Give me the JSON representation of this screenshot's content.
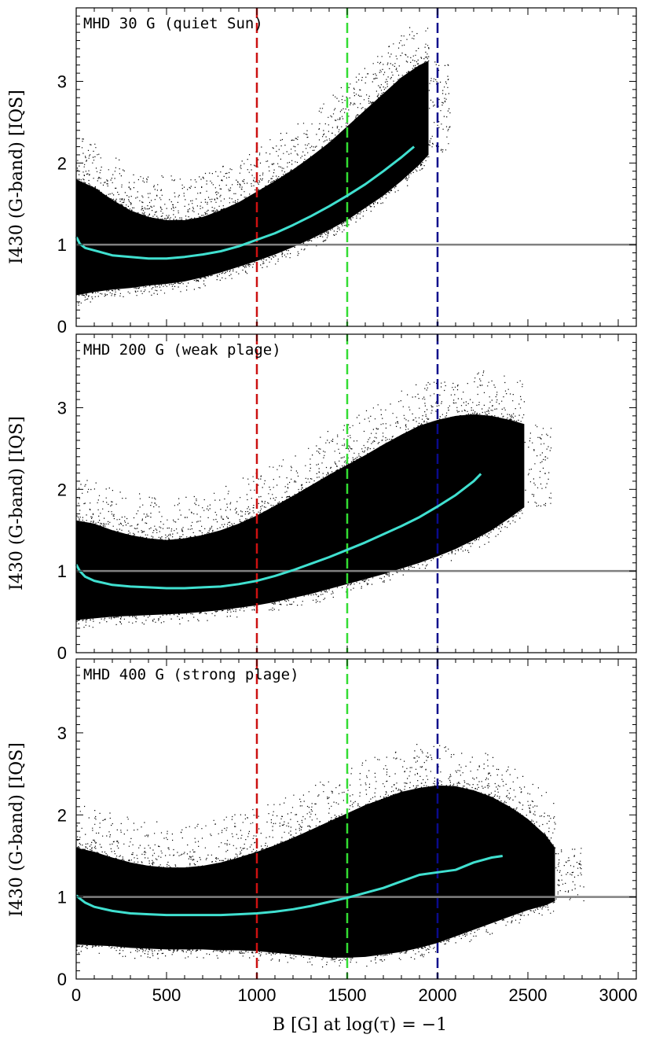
{
  "chart_data": {
    "type": "scatter",
    "xlabel": "B [G] at log(τ) = −1",
    "ylabel": "I430 (G-band) [IQS]",
    "xlim": [
      0,
      3100
    ],
    "ylim": [
      0,
      3.9
    ],
    "xticks": [
      0,
      500,
      1000,
      1500,
      2000,
      2500,
      3000
    ],
    "xtick_labels": [
      "0",
      "500",
      "1000",
      "1500",
      "2000",
      "2500",
      "3000"
    ],
    "yticks": [
      0,
      1,
      2,
      3
    ],
    "ytick_labels": [
      "0",
      "1",
      "2",
      "3"
    ],
    "reference_line": {
      "y": 1.0,
      "color": "#808080"
    },
    "vertical_lines": [
      {
        "x": 1000,
        "color": "#cc1111"
      },
      {
        "x": 1500,
        "color": "#33dd33"
      },
      {
        "x": 2000,
        "color": "#0a0a8c"
      }
    ],
    "panels": [
      {
        "title": "MHD 30 G (quiet Sun)",
        "scatter_color": "#000000",
        "mean_curve_color": "#40e0d0",
        "mean_curve": {
          "x": [
            0,
            20,
            50,
            100,
            200,
            300,
            400,
            500,
            600,
            700,
            800,
            900,
            1000,
            1100,
            1200,
            1300,
            1400,
            1500,
            1600,
            1700,
            1800,
            1870
          ],
          "y": [
            1.1,
            1.01,
            0.96,
            0.93,
            0.87,
            0.85,
            0.83,
            0.83,
            0.85,
            0.88,
            0.92,
            0.98,
            1.06,
            1.14,
            1.24,
            1.35,
            1.47,
            1.6,
            1.74,
            1.9,
            2.07,
            2.2
          ]
        },
        "cloud_upper": {
          "x": [
            0,
            100,
            200,
            300,
            400,
            500,
            600,
            700,
            800,
            900,
            1000,
            1100,
            1200,
            1300,
            1400,
            1500,
            1600,
            1700,
            1800,
            1900,
            1950
          ],
          "y": [
            1.8,
            1.7,
            1.55,
            1.42,
            1.34,
            1.3,
            1.3,
            1.34,
            1.42,
            1.52,
            1.65,
            1.78,
            1.92,
            2.08,
            2.25,
            2.45,
            2.65,
            2.85,
            3.05,
            3.2,
            3.25
          ]
        },
        "cloud_lower": {
          "x": [
            0,
            100,
            200,
            300,
            400,
            500,
            600,
            700,
            800,
            900,
            1000,
            1100,
            1200,
            1300,
            1400,
            1500,
            1600,
            1700,
            1800,
            1900,
            1950
          ],
          "y": [
            0.38,
            0.42,
            0.45,
            0.47,
            0.5,
            0.52,
            0.55,
            0.6,
            0.66,
            0.73,
            0.8,
            0.88,
            0.97,
            1.07,
            1.18,
            1.3,
            1.45,
            1.6,
            1.78,
            1.98,
            2.1
          ]
        }
      },
      {
        "title": "MHD 200 G (weak plage)",
        "scatter_color": "#000000",
        "mean_curve_color": "#40e0d0",
        "mean_curve": {
          "x": [
            0,
            20,
            50,
            100,
            200,
            300,
            400,
            500,
            600,
            700,
            800,
            900,
            1000,
            1100,
            1200,
            1300,
            1400,
            1500,
            1600,
            1700,
            1800,
            1900,
            2000,
            2100,
            2200,
            2240
          ],
          "y": [
            1.08,
            1.0,
            0.93,
            0.88,
            0.83,
            0.81,
            0.8,
            0.79,
            0.79,
            0.8,
            0.81,
            0.84,
            0.88,
            0.94,
            1.01,
            1.09,
            1.17,
            1.26,
            1.35,
            1.45,
            1.55,
            1.66,
            1.79,
            1.93,
            2.1,
            2.19
          ]
        },
        "cloud_upper": {
          "x": [
            0,
            100,
            200,
            300,
            400,
            500,
            600,
            700,
            800,
            900,
            1000,
            1100,
            1200,
            1300,
            1400,
            1500,
            1600,
            1700,
            1800,
            1900,
            2000,
            2100,
            2200,
            2300,
            2400,
            2480
          ],
          "y": [
            1.62,
            1.58,
            1.5,
            1.44,
            1.4,
            1.38,
            1.4,
            1.44,
            1.5,
            1.58,
            1.68,
            1.8,
            1.92,
            2.05,
            2.18,
            2.3,
            2.42,
            2.55,
            2.67,
            2.78,
            2.85,
            2.9,
            2.92,
            2.9,
            2.85,
            2.8
          ]
        },
        "cloud_lower": {
          "x": [
            0,
            100,
            200,
            300,
            400,
            500,
            600,
            700,
            800,
            900,
            1000,
            1100,
            1200,
            1300,
            1400,
            1500,
            1600,
            1700,
            1800,
            1900,
            2000,
            2100,
            2200,
            2300,
            2400,
            2480
          ],
          "y": [
            0.4,
            0.42,
            0.44,
            0.45,
            0.46,
            0.47,
            0.48,
            0.5,
            0.52,
            0.55,
            0.58,
            0.62,
            0.67,
            0.72,
            0.78,
            0.84,
            0.9,
            0.96,
            1.03,
            1.1,
            1.18,
            1.27,
            1.38,
            1.5,
            1.65,
            1.78
          ]
        }
      },
      {
        "title": "MHD 400 G (strong plage)",
        "scatter_color": "#000000",
        "mean_curve_color": "#40e0d0",
        "mean_curve": {
          "x": [
            0,
            20,
            50,
            100,
            200,
            300,
            400,
            500,
            600,
            700,
            800,
            900,
            1000,
            1100,
            1200,
            1300,
            1400,
            1500,
            1600,
            1700,
            1800,
            1900,
            2000,
            2100,
            2200,
            2300,
            2360
          ],
          "y": [
            1.02,
            0.98,
            0.93,
            0.88,
            0.83,
            0.8,
            0.79,
            0.78,
            0.78,
            0.78,
            0.78,
            0.79,
            0.8,
            0.82,
            0.85,
            0.89,
            0.94,
            0.99,
            1.05,
            1.11,
            1.19,
            1.27,
            1.3,
            1.33,
            1.42,
            1.48,
            1.5
          ]
        },
        "cloud_upper": {
          "x": [
            0,
            100,
            200,
            300,
            400,
            500,
            600,
            700,
            800,
            900,
            1000,
            1100,
            1200,
            1300,
            1400,
            1500,
            1600,
            1700,
            1800,
            1900,
            2000,
            2100,
            2200,
            2300,
            2400,
            2500,
            2600,
            2650
          ],
          "y": [
            1.6,
            1.55,
            1.48,
            1.42,
            1.38,
            1.36,
            1.36,
            1.38,
            1.42,
            1.48,
            1.55,
            1.63,
            1.72,
            1.82,
            1.92,
            2.02,
            2.12,
            2.2,
            2.28,
            2.33,
            2.36,
            2.35,
            2.3,
            2.22,
            2.1,
            1.95,
            1.75,
            1.6
          ]
        },
        "cloud_lower": {
          "x": [
            0,
            100,
            200,
            300,
            400,
            500,
            600,
            700,
            800,
            900,
            1000,
            1100,
            1200,
            1300,
            1400,
            1500,
            1600,
            1700,
            1800,
            1900,
            2000,
            2100,
            2200,
            2300,
            2400,
            2500,
            2600,
            2650
          ],
          "y": [
            0.42,
            0.41,
            0.4,
            0.38,
            0.37,
            0.36,
            0.36,
            0.36,
            0.35,
            0.35,
            0.34,
            0.32,
            0.3,
            0.28,
            0.26,
            0.26,
            0.27,
            0.3,
            0.33,
            0.38,
            0.44,
            0.52,
            0.6,
            0.68,
            0.76,
            0.84,
            0.9,
            0.95
          ]
        }
      }
    ]
  }
}
